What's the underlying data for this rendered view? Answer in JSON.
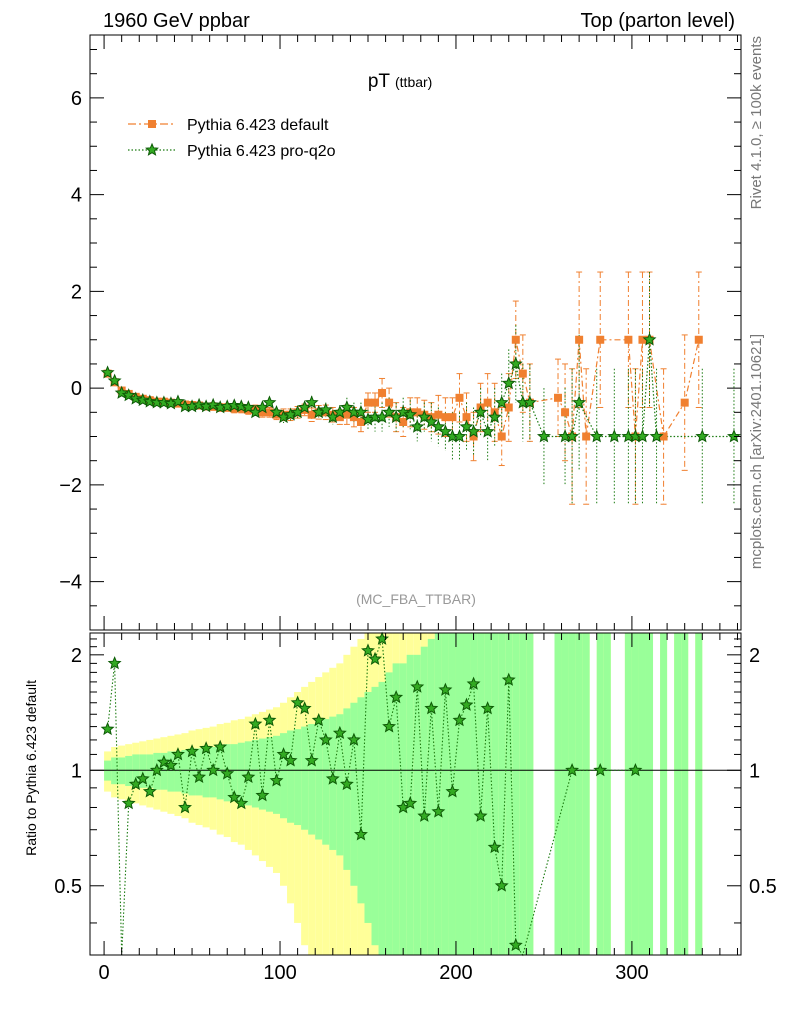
{
  "header": {
    "left_title": "1960 GeV ppbar",
    "right_title": "Top (parton level)"
  },
  "side": {
    "rivet_label": "Rivet 4.1.0, ≥ 100k events",
    "mcplots_label": "mcplots.cern.ch [arXiv:2401.10621]"
  },
  "colors": {
    "default": "#f08030",
    "pro": "#1a7a10",
    "band_yellow": "#ffff99",
    "band_green": "#99ff99"
  },
  "chart_data": [
    {
      "type": "line",
      "title": "pT",
      "title_sub": "(ttbar)",
      "analysis_label": "(MC_FBA_TTBAR)",
      "xlim": [
        -8,
        362
      ],
      "ylim": [
        -5,
        7.3
      ],
      "yticks": [
        -4,
        -2,
        0,
        2,
        4,
        6
      ],
      "ytick_labels": [
        "−4",
        "−2",
        "0",
        "2",
        "4",
        "6"
      ],
      "legend_position": "top-left",
      "series": [
        {
          "name": "Pythia 6.423 default",
          "marker": "square",
          "x": [
            2,
            6,
            10,
            14,
            18,
            22,
            26,
            30,
            34,
            38,
            42,
            46,
            50,
            54,
            58,
            62,
            66,
            70,
            74,
            78,
            82,
            86,
            90,
            94,
            98,
            102,
            106,
            110,
            114,
            118,
            122,
            126,
            130,
            134,
            138,
            142,
            146,
            150,
            154,
            158,
            162,
            166,
            170,
            174,
            178,
            182,
            186,
            190,
            194,
            198,
            202,
            206,
            210,
            214,
            218,
            222,
            226,
            230,
            234,
            238,
            242,
            258,
            262,
            266,
            270,
            274,
            282,
            298,
            302,
            306,
            310,
            318,
            330,
            338
          ],
          "y": [
            0.3,
            0.12,
            -0.05,
            -0.12,
            -0.18,
            -0.22,
            -0.25,
            -0.28,
            -0.28,
            -0.3,
            -0.32,
            -0.34,
            -0.35,
            -0.36,
            -0.38,
            -0.38,
            -0.4,
            -0.4,
            -0.42,
            -0.42,
            -0.45,
            -0.45,
            -0.5,
            -0.5,
            -0.55,
            -0.55,
            -0.55,
            -0.5,
            -0.45,
            -0.55,
            -0.5,
            -0.5,
            -0.55,
            -0.6,
            -0.55,
            -0.6,
            -0.7,
            -0.3,
            -0.3,
            -0.1,
            -0.3,
            -0.6,
            -0.7,
            -0.5,
            -0.5,
            -0.55,
            -0.6,
            -0.55,
            -0.6,
            -0.6,
            -0.2,
            -0.6,
            -1.0,
            -0.4,
            -0.3,
            -0.5,
            -1.0,
            -0.4,
            1.0,
            0.3,
            -0.3,
            -0.2,
            -0.5,
            -1.0,
            1.0,
            -1.0,
            1.0,
            1.0,
            -1.0,
            1.0,
            1.0,
            -1.0,
            -0.3,
            1.0
          ],
          "err": [
            0.05,
            0.05,
            0.05,
            0.05,
            0.05,
            0.05,
            0.05,
            0.06,
            0.06,
            0.06,
            0.06,
            0.07,
            0.07,
            0.07,
            0.07,
            0.08,
            0.08,
            0.08,
            0.09,
            0.09,
            0.09,
            0.1,
            0.1,
            0.1,
            0.1,
            0.12,
            0.12,
            0.12,
            0.12,
            0.14,
            0.14,
            0.15,
            0.15,
            0.15,
            0.2,
            0.2,
            0.2,
            0.2,
            0.2,
            0.3,
            0.3,
            0.3,
            0.3,
            0.3,
            0.3,
            0.3,
            0.3,
            0.4,
            0.4,
            0.4,
            0.5,
            0.5,
            0.5,
            0.5,
            0.6,
            0.6,
            0.6,
            0.7,
            0.8,
            0.8,
            0.8,
            0.8,
            1.0,
            1.4,
            1.4,
            1.4,
            1.4,
            1.4,
            1.4,
            1.4,
            1.4,
            1.4,
            1.4,
            1.4
          ]
        },
        {
          "name": "Pythia 6.423 pro-q2o",
          "marker": "star",
          "x": [
            2,
            6,
            10,
            14,
            18,
            22,
            26,
            30,
            34,
            38,
            42,
            46,
            50,
            54,
            58,
            62,
            66,
            70,
            74,
            78,
            82,
            86,
            90,
            94,
            98,
            102,
            106,
            110,
            114,
            118,
            122,
            126,
            130,
            134,
            138,
            142,
            146,
            150,
            154,
            158,
            162,
            166,
            170,
            174,
            178,
            182,
            186,
            190,
            194,
            198,
            202,
            206,
            210,
            214,
            218,
            222,
            226,
            230,
            234,
            238,
            242,
            250,
            262,
            266,
            270,
            280,
            290,
            298,
            302,
            306,
            310,
            314,
            340,
            358
          ],
          "y": [
            0.32,
            0.15,
            -0.1,
            -0.15,
            -0.22,
            -0.25,
            -0.28,
            -0.3,
            -0.3,
            -0.32,
            -0.28,
            -0.38,
            -0.38,
            -0.35,
            -0.38,
            -0.35,
            -0.4,
            -0.38,
            -0.36,
            -0.38,
            -0.4,
            -0.5,
            -0.4,
            -0.3,
            -0.5,
            -0.6,
            -0.55,
            -0.5,
            -0.4,
            -0.3,
            -0.5,
            -0.45,
            -0.6,
            -0.5,
            -0.4,
            -0.5,
            -0.5,
            -0.65,
            -0.6,
            -0.6,
            -0.5,
            -0.6,
            -0.5,
            -0.55,
            -0.8,
            -0.6,
            -0.7,
            -0.8,
            -0.9,
            -1.0,
            -1.0,
            -0.8,
            -0.9,
            -0.5,
            -0.9,
            -0.6,
            -0.3,
            0.1,
            0.5,
            -0.3,
            -0.3,
            -1.0,
            -1.0,
            -1.0,
            -0.3,
            -1.0,
            -1.0,
            -1.0,
            -1.0,
            -1.0,
            1.0,
            -1.0,
            -1.0,
            -1.0
          ],
          "err": [
            0.05,
            0.05,
            0.05,
            0.05,
            0.05,
            0.05,
            0.05,
            0.06,
            0.06,
            0.06,
            0.06,
            0.07,
            0.07,
            0.07,
            0.07,
            0.08,
            0.08,
            0.08,
            0.09,
            0.09,
            0.09,
            0.1,
            0.1,
            0.1,
            0.1,
            0.12,
            0.12,
            0.12,
            0.12,
            0.14,
            0.14,
            0.15,
            0.15,
            0.15,
            0.2,
            0.2,
            0.2,
            0.2,
            0.3,
            0.3,
            0.3,
            0.3,
            0.3,
            0.3,
            0.3,
            0.3,
            0.4,
            0.4,
            0.4,
            0.5,
            0.5,
            0.5,
            0.5,
            0.5,
            0.6,
            0.6,
            0.6,
            0.7,
            0.8,
            0.8,
            0.8,
            1.0,
            1.0,
            1.4,
            1.4,
            1.4,
            1.4,
            1.4,
            1.4,
            1.4,
            1.4,
            1.4,
            1.4,
            1.4
          ]
        }
      ]
    },
    {
      "type": "line",
      "ylabel": "Ratio to Pythia 6.423 default",
      "xlim": [
        -8,
        362
      ],
      "ylim": [
        0.33,
        2.28
      ],
      "xticks": [
        0,
        100,
        200,
        300
      ],
      "yticks": [
        0.5,
        1,
        2
      ],
      "ytick_labels": [
        "0.5",
        "1",
        "2"
      ],
      "reference_line": 1,
      "bands": {
        "x": [
          2,
          6,
          10,
          14,
          18,
          22,
          26,
          30,
          34,
          38,
          42,
          46,
          50,
          54,
          58,
          62,
          66,
          70,
          74,
          78,
          82,
          86,
          90,
          94,
          98,
          102,
          106,
          110,
          114,
          118,
          122,
          126,
          130,
          134,
          138,
          142,
          146,
          150,
          154,
          158,
          162,
          166,
          170,
          174,
          178,
          182,
          186,
          190,
          194,
          198,
          202,
          206,
          210,
          214,
          218,
          222,
          226,
          230,
          234,
          238,
          242,
          258,
          262,
          266,
          270,
          274,
          282,
          286,
          298,
          302,
          306,
          310,
          318,
          326,
          330,
          338
        ],
        "green": [
          0.06,
          0.08,
          0.08,
          0.09,
          0.1,
          0.1,
          0.1,
          0.11,
          0.11,
          0.12,
          0.12,
          0.13,
          0.14,
          0.14,
          0.15,
          0.15,
          0.16,
          0.17,
          0.17,
          0.18,
          0.19,
          0.2,
          0.21,
          0.22,
          0.23,
          0.25,
          0.27,
          0.28,
          0.3,
          0.32,
          0.34,
          0.36,
          0.38,
          0.4,
          0.45,
          0.5,
          0.55,
          0.6,
          0.65,
          0.7,
          0.8,
          0.9,
          0.9,
          1.0,
          1.0,
          1.1,
          1.2,
          1.3,
          1.5,
          1.5,
          1.6,
          1.7,
          1.8,
          2.0,
          2.0,
          2.0,
          2.0,
          2.0,
          2.0,
          2.0,
          2.0,
          2.0,
          2.0,
          2.0,
          2.0,
          2.0,
          2.0,
          2.0,
          2.0,
          2.0,
          2.0,
          2.0,
          2.0,
          2.0,
          2.0,
          2.0
        ],
        "yellow": [
          0.12,
          0.15,
          0.16,
          0.17,
          0.18,
          0.19,
          0.2,
          0.21,
          0.22,
          0.23,
          0.24,
          0.25,
          0.27,
          0.28,
          0.29,
          0.3,
          0.32,
          0.33,
          0.35,
          0.36,
          0.38,
          0.4,
          0.42,
          0.44,
          0.46,
          0.5,
          0.55,
          0.6,
          0.65,
          0.7,
          0.75,
          0.8,
          0.85,
          0.9,
          1.0,
          1.1,
          1.2,
          1.3,
          1.4,
          1.5,
          1.6,
          1.7,
          1.8,
          1.9,
          2.0,
          2.0,
          2.0,
          2.0,
          2.0,
          2.0,
          2.0,
          2.0,
          2.0,
          2.0,
          2.0,
          2.0,
          2.0,
          2.0,
          2.0,
          2.0,
          2.0,
          2.0,
          2.0,
          2.0,
          2.0,
          2.0,
          2.0,
          2.0,
          2.0,
          2.0,
          2.0,
          2.0,
          2.0,
          2.0,
          2.0,
          2.0
        ]
      },
      "series": [
        {
          "name": "Pythia 6.423 pro-q2o / default",
          "x": [
            2,
            6,
            10,
            14,
            18,
            22,
            26,
            30,
            34,
            38,
            42,
            46,
            50,
            54,
            58,
            62,
            66,
            70,
            74,
            78,
            82,
            86,
            90,
            94,
            98,
            102,
            106,
            110,
            114,
            118,
            122,
            126,
            130,
            134,
            138,
            142,
            146,
            150,
            154,
            158,
            162,
            166,
            170,
            174,
            178,
            182,
            186,
            190,
            194,
            198,
            202,
            206,
            210,
            214,
            218,
            222,
            226,
            230,
            234,
            238,
            266,
            282,
            302
          ],
          "y": [
            1.28,
            1.9,
            0.3,
            0.82,
            0.92,
            0.95,
            0.88,
            1.0,
            1.05,
            1.03,
            1.1,
            0.8,
            1.12,
            0.96,
            1.14,
            1.0,
            1.15,
            0.98,
            0.85,
            0.82,
            0.96,
            1.32,
            0.86,
            1.35,
            0.94,
            1.1,
            1.06,
            1.5,
            1.45,
            1.06,
            1.35,
            1.2,
            0.95,
            1.25,
            0.92,
            1.2,
            0.68,
            2.05,
            1.95,
            2.2,
            1.3,
            1.55,
            0.8,
            0.82,
            1.65,
            0.76,
            1.45,
            0.78,
            1.62,
            0.88,
            1.35,
            1.48,
            1.68,
            0.76,
            1.45,
            0.63,
            0.5,
            1.72,
            0.35,
            0.3,
            1.0,
            1.0,
            1.0
          ]
        }
      ]
    }
  ]
}
